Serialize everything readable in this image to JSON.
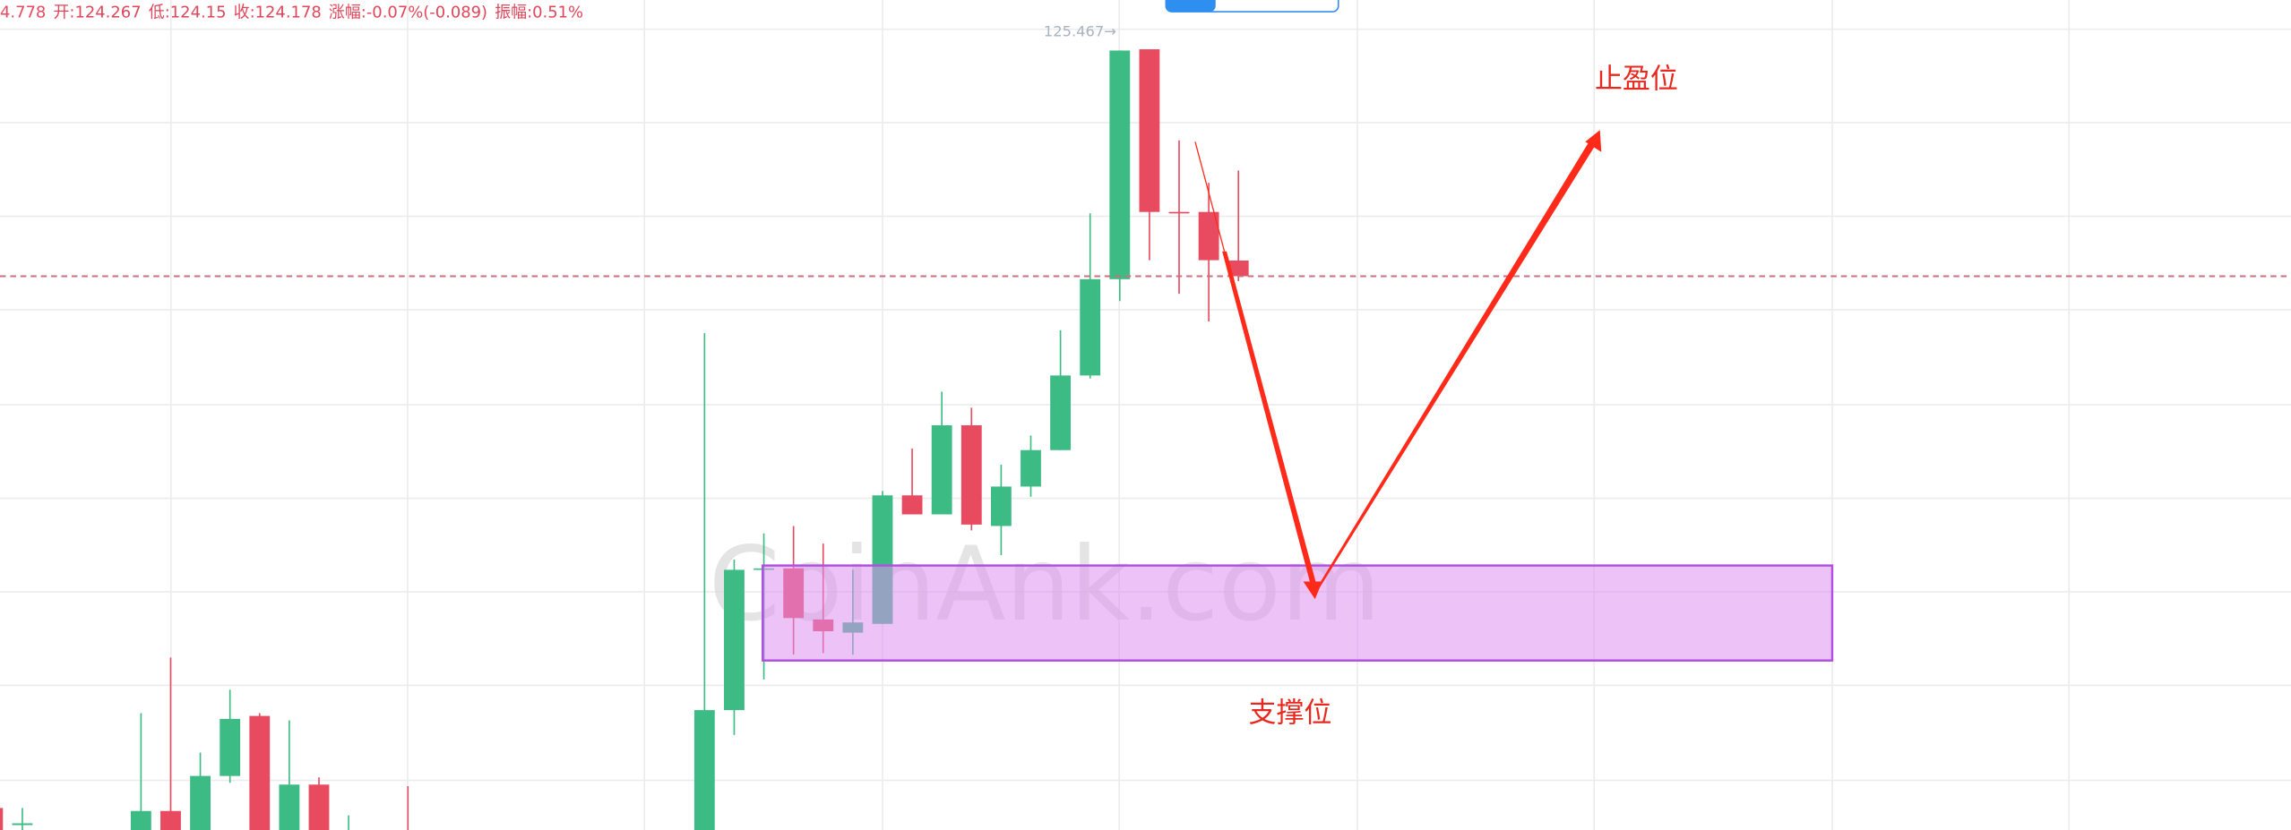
{
  "chart_data": {
    "type": "candlestick",
    "header": [
      "4.778",
      "开:124.267",
      "低:124.15",
      "收:124.178",
      "涨幅:-0.07%(-0.089)",
      "振幅:0.51%"
    ],
    "high_label": "125.467→",
    "annotations": [
      "止盈位",
      "支撑位"
    ],
    "watermark": "CoinAnk.com",
    "up_color": "#3dbb85",
    "down_color": "#e84a5f",
    "ylim": [
      121.032,
      125.747
    ],
    "open": [
      121.157,
      121.06,
      null,
      null,
      null,
      120.9,
      121.14,
      120.9,
      121.339,
      121.68,
      120.9,
      121.29,
      121.0,
      null,
      120.95,
      null,
      null,
      null,
      null,
      null,
      null,
      null,
      null,
      null,
      120.9,
      121.713,
      122.51,
      122.518,
      122.228,
      122.153,
      122.203,
      122.933,
      122.825,
      123.331,
      122.759,
      122.983,
      123.19,
      123.614,
      124.161,
      125.467,
      124.543,
      124.543,
      124.267
    ],
    "high": [
      121.157,
      121.157,
      null,
      null,
      null,
      121.696,
      122.012,
      121.472,
      121.829,
      121.696,
      121.655,
      121.331,
      121.115,
      null,
      121.281,
      null,
      null,
      null,
      null,
      null,
      null,
      null,
      null,
      null,
      123.854,
      122.568,
      122.717,
      122.759,
      122.659,
      122.51,
      122.958,
      123.199,
      123.522,
      123.431,
      123.107,
      123.273,
      123.871,
      124.535,
      125.46,
      125.467,
      124.95,
      124.709,
      124.778
    ],
    "low": [
      121.0,
      121.0,
      null,
      null,
      null,
      120.8,
      120.8,
      120.8,
      121.3,
      120.8,
      120.8,
      120.8,
      120.8,
      null,
      120.8,
      null,
      null,
      null,
      null,
      null,
      null,
      null,
      null,
      null,
      120.8,
      121.572,
      121.887,
      122.028,
      122.037,
      122.028,
      122.203,
      122.825,
      122.825,
      122.734,
      122.593,
      122.925,
      123.19,
      123.597,
      124.037,
      124.269,
      124.078,
      123.921,
      124.15
    ],
    "close": [
      121.032,
      121.07,
      null,
      null,
      null,
      121.14,
      120.9,
      121.339,
      121.663,
      120.9,
      121.29,
      120.9,
      121.02,
      null,
      120.9,
      null,
      null,
      null,
      null,
      null,
      null,
      null,
      null,
      null,
      121.713,
      122.51,
      122.518,
      122.236,
      122.161,
      122.211,
      122.933,
      122.825,
      123.331,
      122.767,
      122.983,
      123.19,
      123.614,
      124.161,
      125.46,
      124.543,
      124.535,
      124.269,
      124.178
    ]
  }
}
